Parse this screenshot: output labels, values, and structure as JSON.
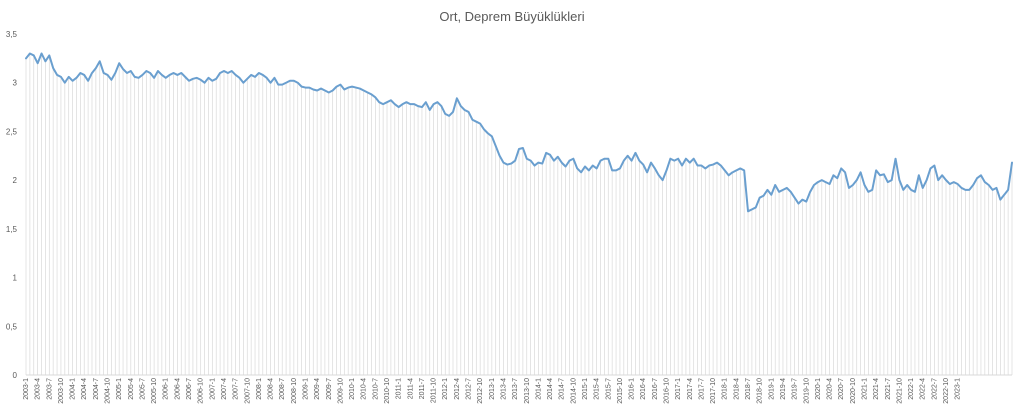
{
  "chart_data": {
    "type": "line",
    "title": "Ort, Deprem Büyüklükleri",
    "xlabel": "",
    "ylabel": "",
    "ylim": [
      0,
      3.5
    ],
    "yticks": [
      "0",
      "0,5",
      "1",
      "1,5",
      "2",
      "2,5",
      "3",
      "3,5"
    ],
    "ytick_values": [
      0,
      0.5,
      1,
      1.5,
      2,
      2.5,
      3,
      3.5
    ],
    "xticks": [
      "2003-1",
      "2003-4",
      "2003-7",
      "2003-10",
      "2004-1",
      "2004-4",
      "2004-7",
      "2004-10",
      "2005-1",
      "2005-4",
      "2005-7",
      "2005-10",
      "2006-1",
      "2006-4",
      "2006-7",
      "2006-10",
      "2007-1",
      "2007-4",
      "2007-7",
      "2007-10",
      "2008-1",
      "2008-4",
      "2008-7",
      "2008-10",
      "2009-1",
      "2009-4",
      "2009-7",
      "2009-10",
      "2010-1",
      "2010-4",
      "2010-7",
      "2010-10",
      "2011-1",
      "2011-4",
      "2011-7",
      "2011-10",
      "2012-1",
      "2012-4",
      "2012-7",
      "2012-10",
      "2013-1",
      "2013-4",
      "2013-7",
      "2013-10",
      "2014-1",
      "2014-4",
      "2014-7",
      "2014-10",
      "2015-1",
      "2015-4",
      "2015-7",
      "2015-10",
      "2016-1",
      "2016-4",
      "2016-7",
      "2016-10",
      "2017-1",
      "2017-4",
      "2017-7",
      "2017-10",
      "2018-1",
      "2018-4",
      "2018-7",
      "2018-10",
      "2019-1",
      "2019-4",
      "2019-7",
      "2019-10",
      "2020-1",
      "2020-4",
      "2020-7",
      "2020-10",
      "2021-1",
      "2021-4",
      "2021-7",
      "2021-10",
      "2022-1",
      "2022-4",
      "2022-7",
      "2022-10",
      "2023-1"
    ],
    "grid": true,
    "line_color": "#6a9fcf",
    "drop_line_color": "#d9d9d9",
    "series": [
      {
        "x_start": "2003-1",
        "frequency": "monthly",
        "values": [
          3.25,
          3.3,
          3.28,
          3.2,
          3.3,
          3.22,
          3.28,
          3.15,
          3.08,
          3.06,
          3.0,
          3.06,
          3.02,
          3.05,
          3.1,
          3.08,
          3.02,
          3.1,
          3.15,
          3.22,
          3.1,
          3.08,
          3.03,
          3.1,
          3.2,
          3.14,
          3.1,
          3.12,
          3.06,
          3.05,
          3.08,
          3.12,
          3.1,
          3.05,
          3.12,
          3.08,
          3.05,
          3.08,
          3.1,
          3.08,
          3.1,
          3.06,
          3.02,
          3.04,
          3.05,
          3.03,
          3.0,
          3.05,
          3.02,
          3.04,
          3.1,
          3.12,
          3.1,
          3.12,
          3.08,
          3.05,
          3.0,
          3.04,
          3.08,
          3.06,
          3.1,
          3.08,
          3.05,
          3.0,
          3.05,
          2.98,
          2.98,
          3.0,
          3.02,
          3.02,
          3.0,
          2.96,
          2.95,
          2.95,
          2.93,
          2.92,
          2.94,
          2.92,
          2.9,
          2.92,
          2.96,
          2.98,
          2.93,
          2.95,
          2.96,
          2.95,
          2.94,
          2.92,
          2.9,
          2.88,
          2.85,
          2.8,
          2.78,
          2.8,
          2.82,
          2.78,
          2.75,
          2.78,
          2.8,
          2.78,
          2.78,
          2.76,
          2.75,
          2.8,
          2.72,
          2.78,
          2.8,
          2.76,
          2.68,
          2.66,
          2.7,
          2.84,
          2.76,
          2.72,
          2.7,
          2.62,
          2.6,
          2.58,
          2.52,
          2.48,
          2.45,
          2.35,
          2.25,
          2.18,
          2.16,
          2.17,
          2.2,
          2.32,
          2.33,
          2.22,
          2.2,
          2.15,
          2.18,
          2.17,
          2.28,
          2.26,
          2.2,
          2.24,
          2.18,
          2.14,
          2.2,
          2.22,
          2.12,
          2.08,
          2.14,
          2.1,
          2.15,
          2.12,
          2.2,
          2.22,
          2.22,
          2.1,
          2.1,
          2.12,
          2.2,
          2.25,
          2.2,
          2.28,
          2.2,
          2.16,
          2.08,
          2.18,
          2.12,
          2.05,
          2.0,
          2.1,
          2.22,
          2.2,
          2.22,
          2.15,
          2.22,
          2.18,
          2.22,
          2.15,
          2.15,
          2.12,
          2.15,
          2.16,
          2.18,
          2.15,
          2.1,
          2.05,
          2.08,
          2.1,
          2.12,
          2.1,
          1.68,
          1.7,
          1.72,
          1.82,
          1.84,
          1.9,
          1.85,
          1.95,
          1.88,
          1.9,
          1.92,
          1.88,
          1.82,
          1.76,
          1.8,
          1.78,
          1.88,
          1.95,
          1.98,
          2.0,
          1.98,
          1.96,
          2.05,
          2.02,
          2.12,
          2.08,
          1.92,
          1.95,
          2.0,
          2.08,
          1.95,
          1.88,
          1.9,
          2.1,
          2.05,
          2.06,
          1.98,
          2.0,
          2.22,
          2.0,
          1.9,
          1.95,
          1.9,
          1.88,
          2.05,
          1.92,
          2.0,
          2.12,
          2.15,
          2.0,
          2.05,
          2.0,
          1.96,
          1.98,
          1.96,
          1.92,
          1.9,
          1.9,
          1.95,
          2.02,
          2.05,
          1.98,
          1.95,
          1.9,
          1.92,
          1.8,
          1.85,
          1.9,
          2.18
        ]
      }
    ]
  }
}
